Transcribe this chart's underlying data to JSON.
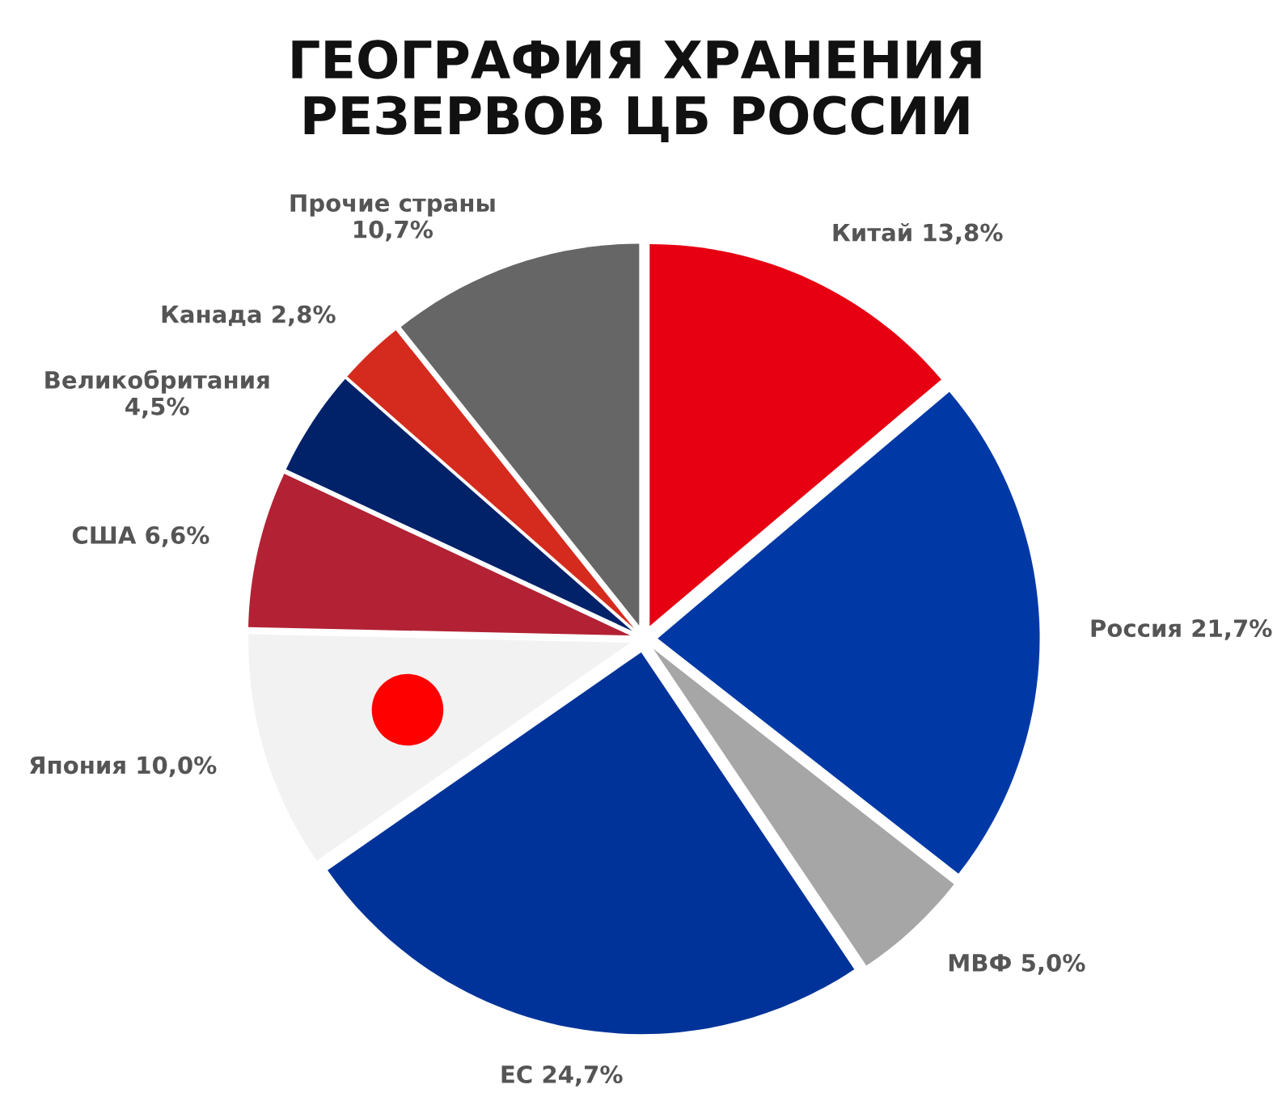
{
  "chart_data": {
    "type": "pie",
    "title": "ГЕОГРАФИЯ ХРАНЕНИЯ\nРЕЗЕРВОВ ЦБ РОССИИ",
    "categories": [
      "Китай",
      "Россия",
      "МВФ",
      "ЕС",
      "Япония",
      "США",
      "Великобритания",
      "Канада",
      "Прочие страны"
    ],
    "values": [
      13.8,
      21.7,
      5.0,
      24.7,
      10.0,
      6.6,
      4.5,
      2.8,
      10.7
    ],
    "value_labels": [
      "13,8%",
      "21,7%",
      "5,0%",
      "24,7%",
      "10,0%",
      "6,6%",
      "4,5%",
      "2,8%",
      "10,7%"
    ],
    "colors": [
      "#e60012",
      "#0039a6",
      "#a6a6a6",
      "#003399",
      "#f2f2f2",
      "#b22234",
      "#012169",
      "#d52b1e",
      "#666666"
    ]
  }
}
